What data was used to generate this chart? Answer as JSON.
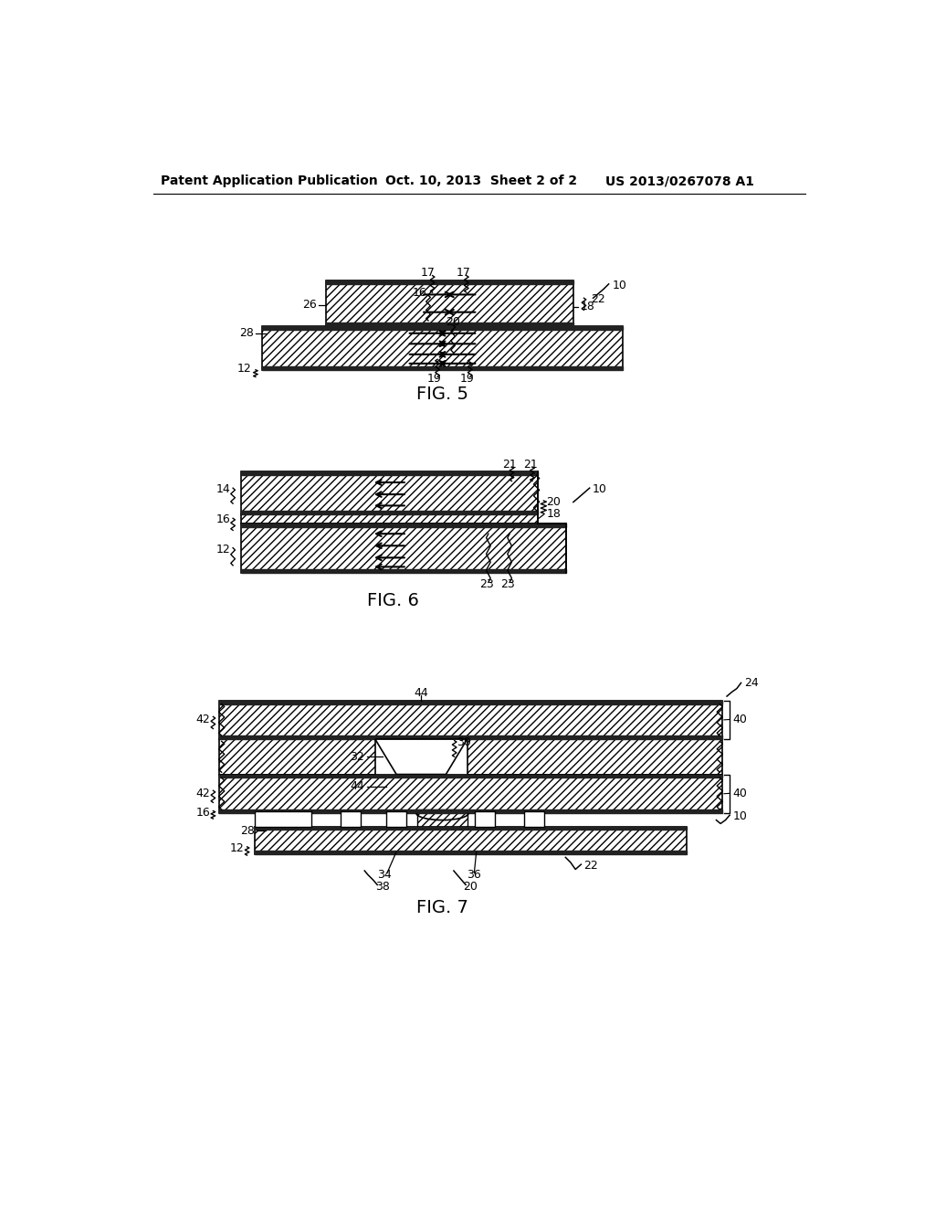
{
  "header_left": "Patent Application Publication",
  "header_mid": "Oct. 10, 2013  Sheet 2 of 2",
  "header_right": "US 2013/0267078 A1",
  "bg_color": "#ffffff"
}
